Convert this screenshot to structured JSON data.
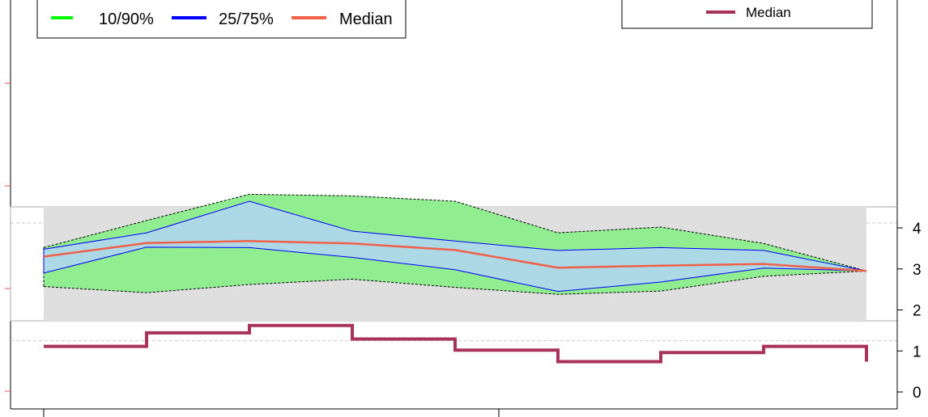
{
  "chart_data": {
    "type": "area",
    "legend_top_left": [
      {
        "label": "10/90%",
        "color": "#00ff00"
      },
      {
        "label": "25/75%",
        "color": "#0000ff"
      },
      {
        "label": "Median",
        "color": "#f0614a"
      }
    ],
    "legend_top_right": [
      {
        "label": "Median",
        "color": "#a8325a"
      }
    ],
    "right_axis": {
      "ticks": [
        "0",
        "1",
        "2",
        "3",
        "4"
      ],
      "range": [
        -0.3,
        5.7
      ]
    },
    "band_chart": {
      "x": [
        1,
        2,
        3,
        4,
        5,
        6,
        7,
        8,
        9
      ],
      "p10": [
        2.57,
        2.42,
        2.62,
        2.75,
        2.55,
        2.38,
        2.46,
        2.82,
        2.95
      ],
      "p25": [
        2.9,
        3.53,
        3.52,
        3.28,
        2.98,
        2.45,
        2.68,
        3.02,
        2.95
      ],
      "median": [
        3.3,
        3.63,
        3.68,
        3.62,
        3.46,
        3.03,
        3.08,
        3.12,
        2.95
      ],
      "p75": [
        3.48,
        3.88,
        4.65,
        3.92,
        3.68,
        3.45,
        3.52,
        3.45,
        2.95
      ],
      "p90": [
        3.52,
        4.18,
        4.82,
        4.78,
        4.65,
        3.88,
        4.02,
        3.62,
        2.95
      ],
      "panel_range": [
        1.76,
        4.55
      ]
    },
    "step_series": {
      "name": "Median",
      "x": [
        1,
        2,
        3,
        4,
        5,
        6,
        7,
        8,
        9
      ],
      "values": [
        1.11,
        1.44,
        1.62,
        1.29,
        1.02,
        0.74,
        0.96,
        1.11,
        0.74
      ]
    },
    "gridlines_y": [
      1.25,
      4.12
    ]
  }
}
